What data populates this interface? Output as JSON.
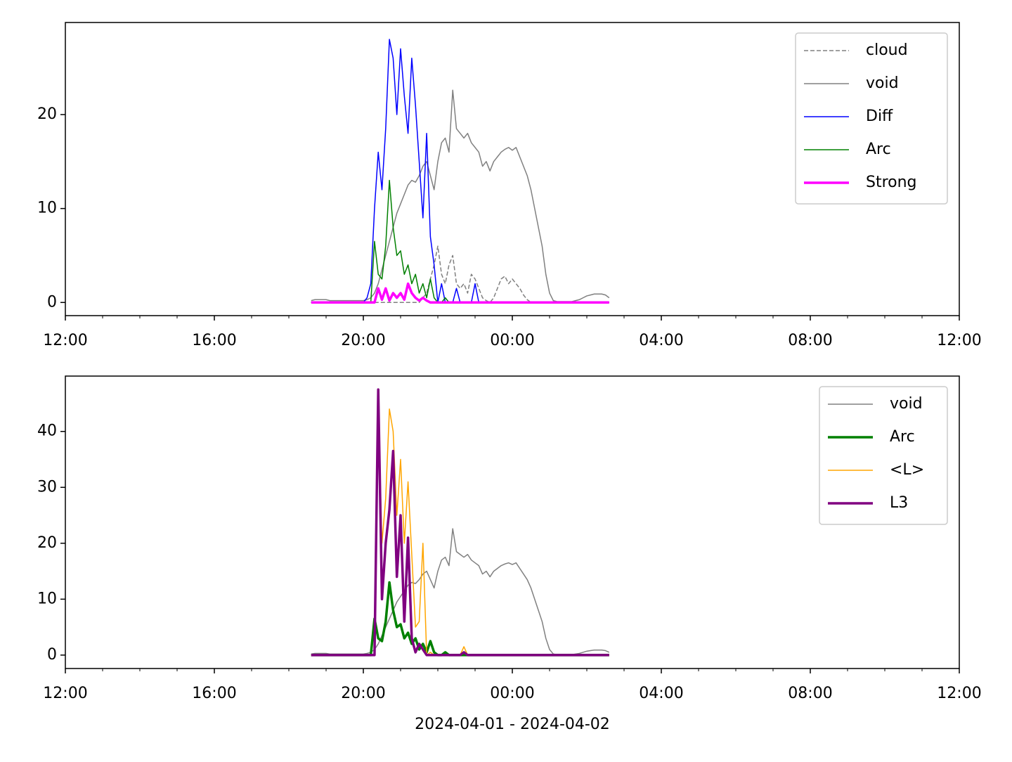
{
  "chart_data": [
    {
      "type": "line",
      "x": [
        6.6,
        6.7,
        6.8,
        6.9,
        7,
        7.1,
        7.2,
        7.3,
        7.4,
        7.5,
        7.6,
        7.7,
        7.8,
        7.9,
        8,
        8.1,
        8.2,
        8.3,
        8.4,
        8.5,
        8.6,
        8.7,
        8.8,
        8.9,
        9,
        9.1,
        9.2,
        9.3,
        9.4,
        9.5,
        9.6,
        9.7,
        9.8,
        9.9,
        10,
        10.1,
        10.2,
        10.3,
        10.4,
        10.5,
        10.6,
        10.7,
        10.8,
        10.9,
        11,
        11.1,
        11.2,
        11.3,
        11.4,
        11.5,
        11.6,
        11.7,
        11.8,
        11.9,
        12,
        12.1,
        12.2,
        12.3,
        12.4,
        12.5,
        12.6,
        12.7,
        12.8,
        12.9,
        13,
        13.1,
        13.2,
        13.3,
        13.4,
        13.5,
        13.6,
        13.7,
        13.8,
        13.9,
        14,
        14.1,
        14.2,
        14.3,
        14.4,
        14.5,
        14.6
      ],
      "series": [
        {
          "name": "cloud",
          "color": "#808080",
          "linestyle": "dashed",
          "linewidth": 1.5,
          "values": [
            0,
            0,
            0,
            0,
            0,
            0,
            0,
            0,
            0,
            0,
            0,
            0,
            0,
            0,
            0,
            0,
            0,
            0,
            0,
            0,
            0,
            0,
            0,
            0,
            0,
            0,
            0,
            0,
            0,
            0,
            0.5,
            1,
            2.5,
            4,
            6,
            3,
            2,
            4,
            5,
            2,
            1.5,
            2,
            1,
            3,
            2.5,
            1.5,
            0.5,
            0.2,
            0,
            0.5,
            1.5,
            2.5,
            2.8,
            2,
            2.5,
            2,
            1.5,
            0.8,
            0.3,
            0,
            0,
            0,
            0,
            0,
            0,
            0,
            0,
            0,
            0,
            0,
            0,
            0,
            0,
            0,
            0,
            0,
            0,
            0,
            0,
            0,
            0
          ]
        },
        {
          "name": "void",
          "color": "#808080",
          "linestyle": "solid",
          "linewidth": 1.5,
          "values": [
            0.2,
            0.3,
            0.3,
            0.3,
            0.3,
            0.2,
            0.2,
            0.2,
            0.2,
            0.2,
            0.2,
            0.2,
            0.2,
            0.2,
            0.2,
            0.3,
            0.5,
            1,
            2,
            3.5,
            5,
            6.5,
            8,
            9.5,
            10.5,
            11.5,
            12.5,
            13,
            12.8,
            13.5,
            14.5,
            15,
            13.5,
            12,
            15,
            17,
            17.5,
            16,
            22.6,
            18.5,
            18,
            17.5,
            18,
            17,
            16.5,
            16,
            14.5,
            15,
            14,
            15,
            15.5,
            16,
            16.3,
            16.5,
            16.2,
            16.5,
            15.5,
            14.5,
            13.5,
            12,
            10,
            8,
            6,
            3,
            1,
            0.2,
            0.1,
            0.1,
            0.1,
            0.1,
            0.1,
            0.2,
            0.3,
            0.5,
            0.7,
            0.8,
            0.9,
            0.9,
            0.9,
            0.8,
            0.5
          ]
        },
        {
          "name": "Diff",
          "color": "#0000ff",
          "linestyle": "solid",
          "linewidth": 1.5,
          "values": [
            0,
            0,
            0,
            0,
            0,
            0,
            0,
            0,
            0,
            0,
            0,
            0,
            0,
            0,
            0,
            0.5,
            2,
            10,
            16,
            12,
            18.5,
            28,
            26,
            20,
            27,
            22,
            18,
            26,
            21,
            15,
            9,
            18,
            7,
            4,
            0,
            2,
            0,
            0,
            0,
            1.5,
            0,
            0,
            0,
            0,
            2,
            0,
            0,
            0,
            0,
            0,
            0,
            0,
            0,
            0,
            0,
            0,
            0,
            0,
            0,
            0,
            0,
            0,
            0,
            0,
            0,
            0,
            0,
            0,
            0,
            0,
            0,
            0,
            0,
            0,
            0,
            0,
            0,
            0,
            0,
            0,
            0
          ]
        },
        {
          "name": "Arc",
          "color": "#008000",
          "linestyle": "solid",
          "linewidth": 1.5,
          "values": [
            0,
            0,
            0,
            0,
            0,
            0,
            0,
            0,
            0,
            0,
            0,
            0,
            0,
            0,
            0,
            0,
            0,
            6.5,
            3,
            2.5,
            6,
            13,
            8,
            5,
            5.5,
            3,
            4,
            2,
            3,
            1,
            2,
            0.5,
            2.5,
            0.5,
            0,
            0,
            0.5,
            0,
            0,
            0,
            0,
            0,
            0,
            0,
            0,
            0,
            0,
            0,
            0,
            0,
            0,
            0,
            0,
            0,
            0,
            0,
            0,
            0,
            0,
            0,
            0,
            0,
            0,
            0,
            0,
            0,
            0,
            0,
            0,
            0,
            0,
            0,
            0,
            0,
            0,
            0,
            0,
            0,
            0,
            0,
            0
          ]
        },
        {
          "name": "Strong",
          "color": "#ff00ff",
          "linestyle": "solid",
          "linewidth": 3.5,
          "values": [
            0,
            0,
            0,
            0,
            0,
            0,
            0,
            0,
            0,
            0,
            0,
            0,
            0,
            0,
            0,
            0,
            0,
            0,
            1.5,
            0.3,
            1.5,
            0.2,
            1,
            0.5,
            1,
            0.3,
            2,
            1,
            0.5,
            0.2,
            0.5,
            0.2,
            0,
            0,
            0,
            0,
            0,
            0,
            0,
            0,
            0,
            0,
            0,
            0,
            0,
            0,
            0,
            0,
            0,
            0,
            0,
            0,
            0,
            0,
            0,
            0,
            0,
            0,
            0,
            0,
            0,
            0,
            0,
            0,
            0,
            0,
            0,
            0,
            0,
            0,
            0,
            0,
            0,
            0,
            0,
            0,
            0,
            0,
            0,
            0,
            0
          ]
        }
      ],
      "xlim": [
        0,
        24
      ],
      "xticks": [
        {
          "value": 0,
          "label": "12:00"
        },
        {
          "value": 4,
          "label": "16:00"
        },
        {
          "value": 8,
          "label": "20:00"
        },
        {
          "value": 12,
          "label": "00:00"
        },
        {
          "value": 16,
          "label": "04:00"
        },
        {
          "value": 20,
          "label": "08:00"
        },
        {
          "value": 24,
          "label": "12:00"
        }
      ],
      "xminorticks": [
        1,
        2,
        3,
        5,
        6,
        7,
        9,
        10,
        11,
        13,
        14,
        15,
        17,
        18,
        19,
        21,
        22,
        23
      ],
      "ylim": [
        -1.4,
        29.8
      ],
      "yticks": [
        0,
        10,
        20
      ],
      "legend": "upper right"
    },
    {
      "type": "line",
      "x": [
        6.6,
        6.7,
        6.8,
        6.9,
        7,
        7.1,
        7.2,
        7.3,
        7.4,
        7.5,
        7.6,
        7.7,
        7.8,
        7.9,
        8,
        8.1,
        8.2,
        8.3,
        8.4,
        8.5,
        8.6,
        8.7,
        8.8,
        8.9,
        9,
        9.1,
        9.2,
        9.3,
        9.4,
        9.5,
        9.6,
        9.7,
        9.8,
        9.9,
        10,
        10.1,
        10.2,
        10.3,
        10.4,
        10.5,
        10.6,
        10.7,
        10.8,
        10.9,
        11,
        11.1,
        11.2,
        11.3,
        11.4,
        11.5,
        11.6,
        11.7,
        11.8,
        11.9,
        12,
        12.1,
        12.2,
        12.3,
        12.4,
        12.5,
        12.6,
        12.7,
        12.8,
        12.9,
        13,
        13.1,
        13.2,
        13.3,
        13.4,
        13.5,
        13.6,
        13.7,
        13.8,
        13.9,
        14,
        14.1,
        14.2,
        14.3,
        14.4,
        14.5,
        14.6
      ],
      "series": [
        {
          "name": "void",
          "color": "#808080",
          "linestyle": "solid",
          "linewidth": 1.5,
          "values": [
            0.2,
            0.3,
            0.3,
            0.3,
            0.3,
            0.2,
            0.2,
            0.2,
            0.2,
            0.2,
            0.2,
            0.2,
            0.2,
            0.2,
            0.2,
            0.3,
            0.5,
            1,
            2,
            3.5,
            5,
            6.5,
            8,
            9.5,
            10.5,
            11.5,
            12.5,
            13,
            12.8,
            13.5,
            14.5,
            15,
            13.5,
            12,
            15,
            17,
            17.5,
            16,
            22.6,
            18.5,
            18,
            17.5,
            18,
            17,
            16.5,
            16,
            14.5,
            15,
            14,
            15,
            15.5,
            16,
            16.3,
            16.5,
            16.2,
            16.5,
            15.5,
            14.5,
            13.5,
            12,
            10,
            8,
            6,
            3,
            1,
            0.2,
            0.1,
            0.1,
            0.1,
            0.1,
            0.1,
            0.2,
            0.3,
            0.5,
            0.7,
            0.8,
            0.9,
            0.9,
            0.9,
            0.8,
            0.5
          ]
        },
        {
          "name": "Arc",
          "color": "#008000",
          "linestyle": "solid",
          "linewidth": 3.5,
          "values": [
            0,
            0,
            0,
            0,
            0,
            0,
            0,
            0,
            0,
            0,
            0,
            0,
            0,
            0,
            0,
            0,
            0,
            6.5,
            3,
            2.5,
            6,
            13,
            8,
            5,
            5.5,
            3,
            4,
            2,
            3,
            1,
            2,
            0.5,
            2.5,
            0.5,
            0,
            0,
            0.5,
            0,
            0,
            0,
            0,
            0,
            0,
            0,
            0,
            0,
            0,
            0,
            0,
            0,
            0,
            0,
            0,
            0,
            0,
            0,
            0,
            0,
            0,
            0,
            0,
            0,
            0,
            0,
            0,
            0,
            0,
            0,
            0,
            0,
            0,
            0,
            0,
            0,
            0,
            0,
            0,
            0,
            0,
            0,
            0
          ]
        },
        {
          "name": "<L>",
          "color": "#ffa500",
          "linestyle": "solid",
          "linewidth": 1.5,
          "values": [
            0,
            0,
            0,
            0,
            0,
            0,
            0,
            0,
            0,
            0,
            0,
            0,
            0,
            0,
            0,
            0,
            0,
            0,
            45,
            20,
            28,
            44,
            40,
            25,
            35,
            20,
            31,
            18,
            5,
            6,
            20,
            0,
            0.5,
            0,
            0,
            0,
            0,
            0,
            0,
            0,
            0,
            1.5,
            0,
            0,
            0,
            0,
            0,
            0,
            0,
            0,
            0,
            0,
            0,
            0,
            0,
            0,
            0,
            0,
            0,
            0,
            0,
            0,
            0,
            0,
            0,
            0,
            0,
            0,
            0,
            0,
            0,
            0,
            0,
            0,
            0,
            0,
            0,
            0,
            0,
            0,
            0
          ]
        },
        {
          "name": "L3",
          "color": "#800080",
          "linestyle": "solid",
          "linewidth": 3.5,
          "values": [
            0,
            0,
            0,
            0,
            0,
            0,
            0,
            0,
            0,
            0,
            0,
            0,
            0,
            0,
            0,
            0,
            0,
            0,
            47.5,
            10,
            20,
            26,
            36.5,
            14,
            25,
            6,
            21,
            3,
            0.5,
            2,
            1,
            0,
            0,
            0,
            0,
            0,
            0,
            0,
            0,
            0,
            0,
            0.5,
            0,
            0,
            0,
            0,
            0,
            0,
            0,
            0,
            0,
            0,
            0,
            0,
            0,
            0,
            0,
            0,
            0,
            0,
            0,
            0,
            0,
            0,
            0,
            0,
            0,
            0,
            0,
            0,
            0,
            0,
            0,
            0,
            0,
            0,
            0,
            0,
            0,
            0,
            0
          ]
        }
      ],
      "xlim": [
        0,
        24
      ],
      "xticks": [
        {
          "value": 0,
          "label": "12:00"
        },
        {
          "value": 4,
          "label": "16:00"
        },
        {
          "value": 8,
          "label": "20:00"
        },
        {
          "value": 12,
          "label": "00:00"
        },
        {
          "value": 16,
          "label": "04:00"
        },
        {
          "value": 20,
          "label": "08:00"
        },
        {
          "value": 24,
          "label": "12:00"
        }
      ],
      "xminorticks": [
        1,
        2,
        3,
        5,
        6,
        7,
        9,
        10,
        11,
        13,
        14,
        15,
        17,
        18,
        19,
        21,
        22,
        23
      ],
      "ylim": [
        -2.4,
        49.9
      ],
      "yticks": [
        0,
        10,
        20,
        30,
        40
      ],
      "xlabel": "2024-04-01 - 2024-04-02",
      "legend": "upper right"
    }
  ]
}
